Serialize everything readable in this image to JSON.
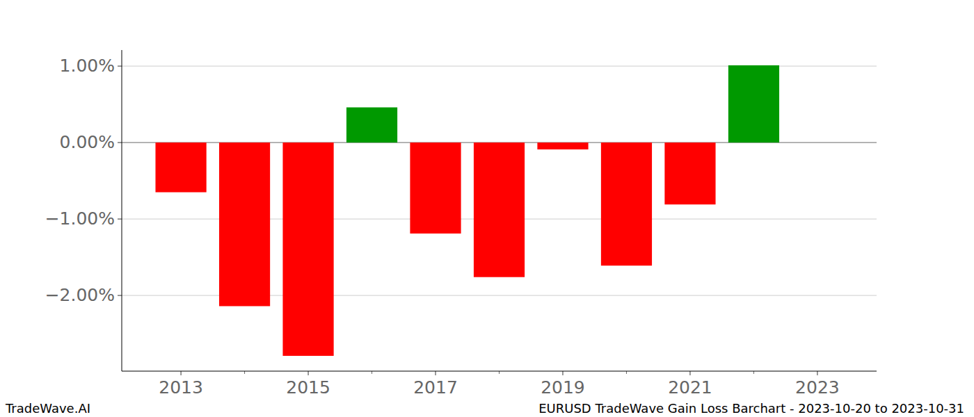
{
  "chart_data": {
    "type": "bar",
    "title": "EURUSD TradeWave Gain Loss Barchart - 2023-10-20 to 2023-10-31",
    "watermark": "TradeWave.AI",
    "x": [
      2013,
      2014,
      2015,
      2016,
      2017,
      2018,
      2019,
      2020,
      2021,
      2022
    ],
    "values": [
      -0.65,
      -2.14,
      -2.79,
      0.46,
      -1.19,
      -1.76,
      -0.09,
      -1.61,
      -0.81,
      1.01
    ],
    "colors": [
      "#ff0000",
      "#ff0000",
      "#ff0000",
      "#009900",
      "#ff0000",
      "#ff0000",
      "#ff0000",
      "#ff0000",
      "#ff0000",
      "#009900"
    ],
    "xlim": [
      2012.07,
      2023.93
    ],
    "xticks": [
      2013,
      2015,
      2017,
      2019,
      2021,
      2023
    ],
    "ylim": [
      -2.99,
      1.21
    ],
    "yticks": [
      {
        "value": -2,
        "label": "−2.00%"
      },
      {
        "value": -1,
        "label": "−1.00%"
      },
      {
        "value": 0,
        "label": "0.00%"
      },
      {
        "value": 1,
        "label": "1.00%"
      }
    ],
    "grid": true
  }
}
